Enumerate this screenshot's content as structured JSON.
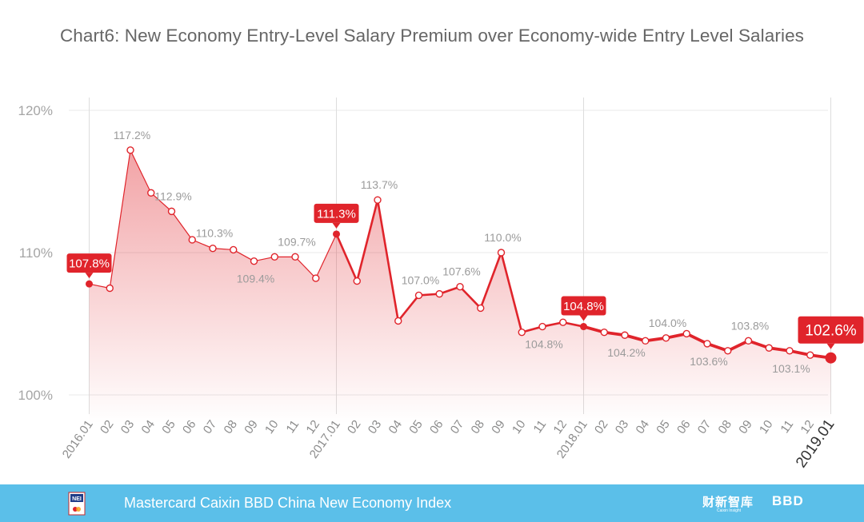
{
  "title": "Chart6: New Economy Entry-Level Salary Premium over Economy-wide Entry Level Salaries",
  "footer": {
    "text": "Mastercard Caixin BBD China New Economy Index",
    "logo_text": "NEI",
    "caixin_logo": "财新智库",
    "caixin_sub": "Caixin Insight",
    "bbd_logo": "BBD"
  },
  "colors": {
    "line": "#e0242b",
    "grid": "#e8e8e8",
    "axis_text": "#9b9b9b",
    "footer_bg": "#5bbfe9"
  },
  "chart_data": {
    "type": "area",
    "title": "Chart6: New Economy Entry-Level Salary Premium over Economy-wide Entry Level Salaries",
    "xlabel": "",
    "ylabel": "",
    "ylim": [
      98,
      120
    ],
    "yticks": [
      {
        "value": 100,
        "label": "100%"
      },
      {
        "value": 110,
        "label": "110%"
      },
      {
        "value": 120,
        "label": "120%"
      }
    ],
    "grid": true,
    "categories": [
      "2016.01",
      "02",
      "03",
      "04",
      "05",
      "06",
      "07",
      "08",
      "09",
      "10",
      "11",
      "12",
      "2017.01",
      "02",
      "03",
      "04",
      "05",
      "06",
      "07",
      "08",
      "09",
      "10",
      "11",
      "12",
      "2018.01",
      "02",
      "03",
      "04",
      "05",
      "06",
      "07",
      "08",
      "09",
      "10",
      "11",
      "12",
      "2019.01"
    ],
    "values": [
      107.8,
      107.5,
      117.2,
      114.2,
      112.9,
      110.9,
      110.3,
      110.2,
      109.4,
      109.7,
      109.7,
      108.2,
      111.3,
      108.0,
      113.7,
      105.2,
      107.0,
      107.1,
      107.6,
      106.1,
      110.0,
      104.4,
      104.8,
      105.1,
      104.8,
      104.4,
      104.2,
      103.8,
      104.0,
      104.3,
      103.6,
      103.1,
      103.8,
      103.3,
      103.1,
      102.8,
      102.6
    ],
    "data_labels": [
      {
        "index": 2,
        "text": "117.2%"
      },
      {
        "index": 4,
        "text": "112.9%"
      },
      {
        "index": 6,
        "text": "110.3%"
      },
      {
        "index": 8,
        "text": "109.4%"
      },
      {
        "index": 10,
        "text": "109.7%"
      },
      {
        "index": 14,
        "text": "113.7%"
      },
      {
        "index": 16,
        "text": "107.0%"
      },
      {
        "index": 18,
        "text": "107.6%"
      },
      {
        "index": 20,
        "text": "110.0%"
      },
      {
        "index": 22,
        "text": "104.8%"
      },
      {
        "index": 26,
        "text": "104.2%"
      },
      {
        "index": 28,
        "text": "104.0%"
      },
      {
        "index": 30,
        "text": "103.6%"
      },
      {
        "index": 32,
        "text": "103.8%"
      },
      {
        "index": 34,
        "text": "103.1%"
      }
    ],
    "callouts": [
      {
        "index": 0,
        "text": "107.8%"
      },
      {
        "index": 12,
        "text": "111.3%"
      },
      {
        "index": 24,
        "text": "104.8%"
      },
      {
        "index": 36,
        "text": "102.6%"
      }
    ]
  }
}
